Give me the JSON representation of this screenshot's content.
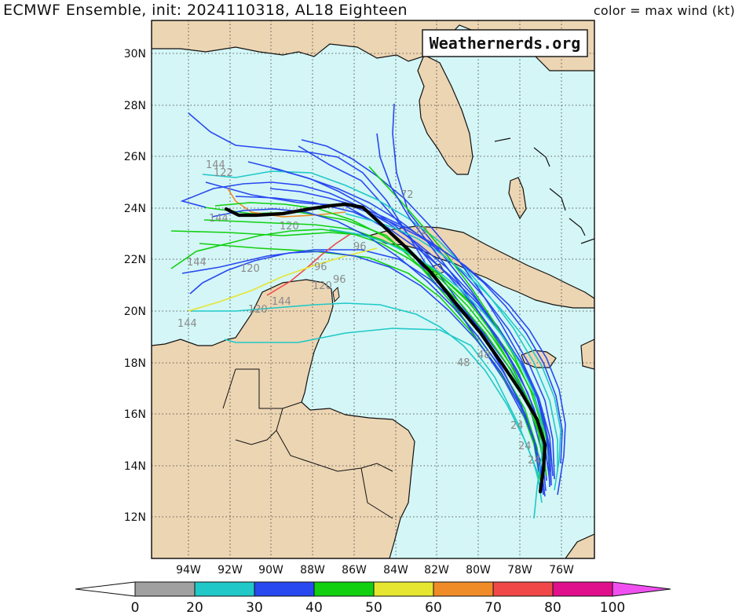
{
  "title": "ECMWF Ensemble, init: 2024110318, AL18 Eighteen",
  "subtitle": "color = max wind (kt)",
  "watermark": "Weathernerds.org",
  "map": {
    "ocean_color": "#d4f6f6",
    "land_color": "#ecd5b3",
    "lon_labels": [
      "94W",
      "92W",
      "90W",
      "88W",
      "86W",
      "84W",
      "82W",
      "80W",
      "78W",
      "76W"
    ],
    "lat_labels": [
      "30N",
      "28N",
      "26N",
      "24N",
      "22N",
      "20N",
      "18N",
      "16N",
      "14N",
      "12N"
    ],
    "forecast_hour_labels": [
      "144",
      "122",
      "144",
      "120",
      "144",
      "120",
      "96",
      "120",
      "96",
      "96",
      "144",
      "120",
      "144",
      "72",
      "72",
      "48",
      "48",
      "24",
      "24",
      "24"
    ]
  },
  "colorbar": {
    "tick_labels": [
      "0",
      "20",
      "30",
      "40",
      "50",
      "60",
      "70",
      "80",
      "100"
    ],
    "colors": [
      "#ffffff",
      "#a0a0a0",
      "#20c8c8",
      "#2848f0",
      "#10d010",
      "#e6e630",
      "#f08c28",
      "#f04848",
      "#e0108c",
      "#f050f0"
    ]
  },
  "tracks": {
    "mean_color": "#000000",
    "member_colors": [
      "#20c8c8",
      "#2848f0",
      "#10d010",
      "#e6e630",
      "#f08c28",
      "#f04848"
    ]
  }
}
